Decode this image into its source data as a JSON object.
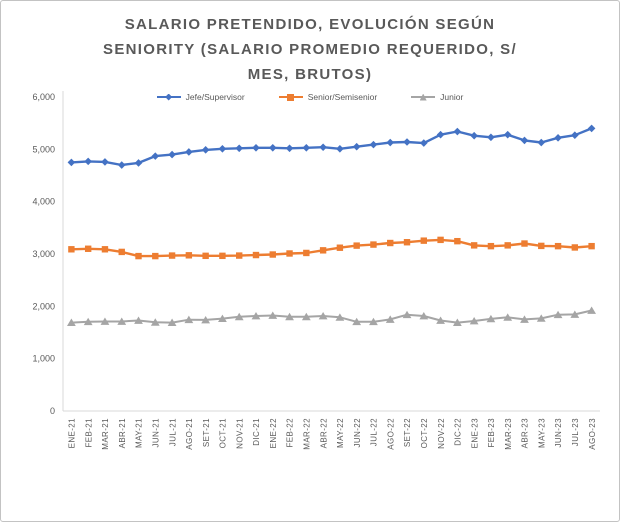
{
  "chart_data": {
    "type": "line",
    "title": "SALARIO PRETENDIDO, EVOLUCIÓN SEGÚN SENIORITY (SALARIO PROMEDIO REQUERIDO, S/ MES, BRUTOS)",
    "title_lines": [
      "SALARIO PRETENDIDO, EVOLUCIÓN SEGÚN",
      "SENIORITY (SALARIO PROMEDIO REQUERIDO, S/",
      "MES, BRUTOS)"
    ],
    "legend_position": "top",
    "grid": false,
    "categories": [
      "ENE-21",
      "FEB-21",
      "MAR-21",
      "ABR-21",
      "MAY-21",
      "JUN-21",
      "JUL-21",
      "AGO-21",
      "SET-21",
      "OCT-21",
      "NOV-21",
      "DIC-21",
      "ENE-22",
      "FEB-22",
      "MAR-22",
      "ABR-22",
      "MAY-22",
      "JUN-22",
      "JUL-22",
      "AGO-22",
      "SET-22",
      "OCT-22",
      "NOV-22",
      "DIC-22",
      "ENE-23",
      "FEB-23",
      "MAR-23",
      "ABR-23",
      "MAY-23",
      "JUN-23",
      "JUL-23",
      "AGO-23"
    ],
    "series": [
      {
        "name": "Jefe/Supervisor",
        "color": "#4472C4",
        "marker": "diamond",
        "values": [
          4750,
          4770,
          4760,
          4700,
          4740,
          4870,
          4900,
          4950,
          4990,
          5010,
          5020,
          5030,
          5030,
          5020,
          5030,
          5040,
          5010,
          5050,
          5090,
          5130,
          5140,
          5120,
          5280,
          5340,
          5260,
          5230,
          5280,
          5170,
          5130,
          5220,
          5270,
          5400
        ]
      },
      {
        "name": "Senior/Semisenior",
        "color": "#ED7D31",
        "marker": "square",
        "values": [
          3090,
          3100,
          3090,
          3040,
          2960,
          2960,
          2970,
          2975,
          2965,
          2965,
          2970,
          2980,
          2990,
          3010,
          3020,
          3070,
          3120,
          3160,
          3180,
          3210,
          3225,
          3255,
          3270,
          3245,
          3165,
          3150,
          3165,
          3200,
          3155,
          3150,
          3125,
          3150
        ]
      },
      {
        "name": "Junior",
        "color": "#A5A5A5",
        "marker": "triangle",
        "values": [
          1690,
          1705,
          1710,
          1710,
          1730,
          1695,
          1690,
          1745,
          1740,
          1765,
          1800,
          1815,
          1825,
          1800,
          1800,
          1815,
          1790,
          1705,
          1705,
          1750,
          1840,
          1815,
          1730,
          1690,
          1720,
          1760,
          1790,
          1750,
          1770,
          1840,
          1845,
          1920
        ]
      }
    ],
    "y_axis": {
      "min": 0,
      "max": 6000,
      "tick_interval": 1000,
      "tick_labels": [
        "0",
        "1,000",
        "2,000",
        "3,000",
        "4,000",
        "5,000",
        "6,000"
      ]
    },
    "colors": {
      "text": "#595959",
      "axis_line": "#D9D9D9",
      "background": "#FFFFFF",
      "border": "#C3C3C3"
    }
  }
}
